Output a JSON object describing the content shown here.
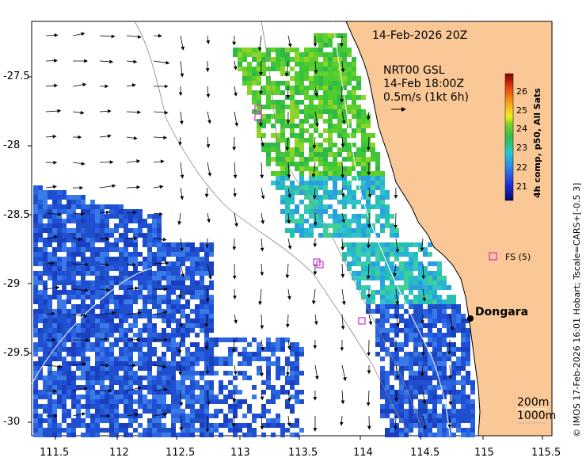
{
  "map": {
    "title": "14-Feb-2026 20Z",
    "current_source": "NRT00 GSL",
    "current_time": "14-Feb 18:00Z",
    "vector_scale": "0.5m/s (1kt 6h)",
    "location_name": "Dongara",
    "legend_fs": "FS (5)",
    "depth_200": "200m",
    "depth_1000": "1000m",
    "credit": "© IMOS 17-Feb-2026 16:01 Hobart; Tscale=CARS+[-0.5 3]",
    "colorbar_title": "4h comp, p50, All Sats",
    "colorbar_ticks": [
      "26",
      "25",
      "24",
      "23",
      "22",
      "21"
    ],
    "lon_ticks": [
      "111.5",
      "112",
      "112.5",
      "113",
      "113.5",
      "114",
      "114.5",
      "115",
      "115.5"
    ],
    "lat_ticks": [
      "-27.5",
      "-28",
      "-28.5",
      "-29",
      "-29.5",
      "-30"
    ],
    "colors": {
      "land": "#fac896",
      "sst_cool": "#1f4fd6",
      "sst_mid": "#27b3d6",
      "sst_warm": "#3cc43a"
    }
  }
}
